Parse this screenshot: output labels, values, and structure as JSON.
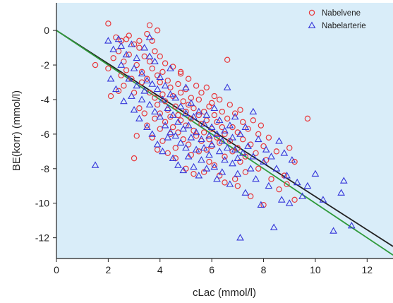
{
  "chart_data": {
    "type": "scatter",
    "xlabel": "cLac (mmol/l)",
    "ylabel": "BE(korr) (mmol/l)",
    "xlim": [
      0,
      13
    ],
    "ylim": [
      -13.2,
      1.6
    ],
    "x_ticks": [
      0,
      2,
      4,
      6,
      8,
      10,
      12
    ],
    "y_ticks": [
      0,
      -2,
      -4,
      -6,
      -8,
      -10,
      -12
    ],
    "grid": false,
    "plot_background": "#d9edf9",
    "legend_position": "top-right",
    "series": [
      {
        "name": "Nabelvene",
        "marker": "circle",
        "color": "#e8373b",
        "points": [
          [
            1.5,
            -2.0
          ],
          [
            2.0,
            0.4
          ],
          [
            2.0,
            -2.2
          ],
          [
            2.1,
            -3.8
          ],
          [
            2.2,
            -1.6
          ],
          [
            2.3,
            -0.4
          ],
          [
            2.4,
            -1.2
          ],
          [
            2.5,
            -2.6
          ],
          [
            2.5,
            -0.6
          ],
          [
            2.6,
            -1.8
          ],
          [
            2.6,
            -3.2
          ],
          [
            2.7,
            -0.5
          ],
          [
            2.7,
            -2.3
          ],
          [
            2.8,
            -1.4
          ],
          [
            2.8,
            -0.3
          ],
          [
            2.9,
            -2.8
          ],
          [
            3.0,
            -0.8
          ],
          [
            3.0,
            -3.6
          ],
          [
            3.0,
            -7.4
          ],
          [
            3.1,
            -2.0
          ],
          [
            3.1,
            -6.1
          ],
          [
            3.2,
            -1.0
          ],
          [
            3.2,
            -4.5
          ],
          [
            3.3,
            -2.4
          ],
          [
            3.3,
            -3.0
          ],
          [
            3.4,
            -1.5
          ],
          [
            3.4,
            -4.8
          ],
          [
            3.5,
            -0.2
          ],
          [
            3.5,
            -2.8
          ],
          [
            3.5,
            -5.5
          ],
          [
            3.6,
            0.3
          ],
          [
            3.6,
            -1.8
          ],
          [
            3.6,
            -3.6
          ],
          [
            3.7,
            -0.6
          ],
          [
            3.7,
            -2.2
          ],
          [
            3.7,
            -6.2
          ],
          [
            3.8,
            -1.2
          ],
          [
            3.8,
            -3.9
          ],
          [
            3.8,
            -5.1
          ],
          [
            3.9,
            -2.6
          ],
          [
            3.9,
            -4.3
          ],
          [
            3.9,
            -6.9
          ],
          [
            4.0,
            -1.5
          ],
          [
            4.0,
            -3.0
          ],
          [
            4.0,
            -4.8
          ],
          [
            4.0,
            -5.7
          ],
          [
            4.1,
            -2.4
          ],
          [
            4.1,
            -3.7
          ],
          [
            4.1,
            -6.4
          ],
          [
            4.2,
            -1.9
          ],
          [
            4.2,
            -4.1
          ],
          [
            4.2,
            -5.3
          ],
          [
            4.3,
            -2.9
          ],
          [
            4.3,
            -4.6
          ],
          [
            4.3,
            -7.1
          ],
          [
            4.4,
            -3.3
          ],
          [
            4.4,
            -5.0
          ],
          [
            4.4,
            -6.0
          ],
          [
            4.5,
            -2.1
          ],
          [
            4.5,
            -3.8
          ],
          [
            4.5,
            -5.6
          ],
          [
            4.6,
            -4.4
          ],
          [
            4.6,
            -6.8
          ],
          [
            4.6,
            -7.4
          ],
          [
            4.7,
            -3.1
          ],
          [
            4.7,
            -4.9
          ],
          [
            4.7,
            -5.9
          ],
          [
            4.8,
            -2.5
          ],
          [
            4.8,
            -3.6
          ],
          [
            4.8,
            -5.2
          ],
          [
            4.9,
            -4.1
          ],
          [
            4.9,
            -6.3
          ],
          [
            5.0,
            -3.4
          ],
          [
            5.0,
            -4.7
          ],
          [
            5.0,
            -5.5
          ],
          [
            5.0,
            -8.0
          ],
          [
            5.1,
            -2.8
          ],
          [
            5.1,
            -4.3
          ],
          [
            5.1,
            -6.6
          ],
          [
            5.2,
            -3.9
          ],
          [
            5.2,
            -5.1
          ],
          [
            5.2,
            -7.2
          ],
          [
            5.3,
            -4.5
          ],
          [
            5.3,
            -5.8
          ],
          [
            5.3,
            -8.3
          ],
          [
            5.4,
            -3.2
          ],
          [
            5.4,
            -6.1
          ],
          [
            5.5,
            -4.0
          ],
          [
            5.5,
            -4.9
          ],
          [
            5.5,
            -7.0
          ],
          [
            5.6,
            -3.6
          ],
          [
            5.6,
            -5.4
          ],
          [
            5.6,
            -6.4
          ],
          [
            5.7,
            -4.7
          ],
          [
            5.7,
            -5.9
          ],
          [
            5.7,
            -8.2
          ],
          [
            5.8,
            -3.3
          ],
          [
            5.8,
            -5.2
          ],
          [
            5.8,
            -6.9
          ],
          [
            5.9,
            -4.4
          ],
          [
            5.9,
            -6.3
          ],
          [
            5.9,
            -7.6
          ],
          [
            6.0,
            -4.2
          ],
          [
            6.0,
            -5.7
          ],
          [
            6.0,
            -6.7
          ],
          [
            6.1,
            -3.8
          ],
          [
            6.1,
            -4.9
          ],
          [
            6.1,
            -7.8
          ],
          [
            6.2,
            -5.3
          ],
          [
            6.2,
            -6.2
          ],
          [
            6.3,
            -4.0
          ],
          [
            6.3,
            -6.5
          ],
          [
            6.3,
            -8.4
          ],
          [
            6.4,
            -4.7
          ],
          [
            6.4,
            -5.6
          ],
          [
            6.5,
            -6.0
          ],
          [
            6.5,
            -7.3
          ],
          [
            6.5,
            -8.8
          ],
          [
            6.6,
            -1.7
          ],
          [
            6.6,
            -5.1
          ],
          [
            6.7,
            -4.3
          ],
          [
            6.7,
            -6.4
          ],
          [
            6.8,
            -5.6
          ],
          [
            6.8,
            -7.0
          ],
          [
            6.9,
            -4.8
          ],
          [
            6.9,
            -8.6
          ],
          [
            7.0,
            -5.9
          ],
          [
            7.0,
            -6.8
          ],
          [
            7.0,
            -9.0
          ],
          [
            7.1,
            -4.6
          ],
          [
            7.1,
            -7.6
          ],
          [
            7.2,
            -5.3
          ],
          [
            7.2,
            -6.3
          ],
          [
            7.3,
            -7.3
          ],
          [
            7.3,
            -8.2
          ],
          [
            7.4,
            -5.7
          ],
          [
            7.5,
            -6.6
          ],
          [
            7.5,
            -9.6
          ],
          [
            7.6,
            -5.2
          ],
          [
            7.7,
            -7.1
          ],
          [
            7.8,
            -6.0
          ],
          [
            7.8,
            -8.0
          ],
          [
            7.9,
            -5.5
          ],
          [
            8.0,
            -6.7
          ],
          [
            8.0,
            -10.1
          ],
          [
            8.1,
            -7.5
          ],
          [
            8.2,
            -6.2
          ],
          [
            8.3,
            -8.6
          ],
          [
            8.5,
            -7.0
          ],
          [
            8.6,
            -9.2
          ],
          [
            8.8,
            -8.4
          ],
          [
            8.9,
            -8.9
          ],
          [
            9.0,
            -6.8
          ],
          [
            9.2,
            -7.6
          ],
          [
            9.2,
            -9.8
          ],
          [
            9.7,
            -5.1
          ],
          [
            2.4,
            -3.5
          ],
          [
            3.2,
            -0.6
          ],
          [
            3.9,
            0.0
          ],
          [
            4.8,
            -2.4
          ]
        ]
      },
      {
        "name": "Nabelarterie",
        "marker": "triangle",
        "color": "#3535d9",
        "points": [
          [
            1.5,
            -7.8
          ],
          [
            2.0,
            -0.6
          ],
          [
            2.1,
            -2.8
          ],
          [
            2.2,
            -1.1
          ],
          [
            2.3,
            -3.4
          ],
          [
            2.4,
            -0.5
          ],
          [
            2.5,
            -2.0
          ],
          [
            2.6,
            -4.1
          ],
          [
            2.7,
            -1.4
          ],
          [
            2.8,
            -2.8
          ],
          [
            2.9,
            -0.8
          ],
          [
            2.9,
            -3.8
          ],
          [
            3.0,
            -2.2
          ],
          [
            3.0,
            -4.6
          ],
          [
            3.1,
            -1.6
          ],
          [
            3.1,
            -3.2
          ],
          [
            3.2,
            -5.1
          ],
          [
            3.3,
            -2.5
          ],
          [
            3.3,
            -4.0
          ],
          [
            3.4,
            -1.0
          ],
          [
            3.4,
            -3.5
          ],
          [
            3.5,
            -5.6
          ],
          [
            3.5,
            -2.9
          ],
          [
            3.6,
            -4.3
          ],
          [
            3.6,
            -0.4
          ],
          [
            3.7,
            -3.1
          ],
          [
            3.7,
            -6.0
          ],
          [
            3.8,
            -1.8
          ],
          [
            3.8,
            -4.7
          ],
          [
            3.9,
            -3.4
          ],
          [
            3.9,
            -6.6
          ],
          [
            4.0,
            -2.7
          ],
          [
            4.0,
            -5.0
          ],
          [
            4.1,
            -4.0
          ],
          [
            4.1,
            -7.0
          ],
          [
            4.2,
            -3.2
          ],
          [
            4.2,
            -5.5
          ],
          [
            4.3,
            -4.5
          ],
          [
            4.3,
            -6.2
          ],
          [
            4.4,
            -3.7
          ],
          [
            4.4,
            -5.9
          ],
          [
            4.5,
            -4.9
          ],
          [
            4.5,
            -7.4
          ],
          [
            4.6,
            -3.9
          ],
          [
            4.6,
            -6.1
          ],
          [
            4.7,
            -5.3
          ],
          [
            4.7,
            -7.8
          ],
          [
            4.8,
            -4.4
          ],
          [
            4.8,
            -6.5
          ],
          [
            4.9,
            -5.7
          ],
          [
            4.9,
            -8.1
          ],
          [
            5.0,
            -4.8
          ],
          [
            5.0,
            -6.8
          ],
          [
            5.1,
            -5.5
          ],
          [
            5.1,
            -7.3
          ],
          [
            5.2,
            -4.2
          ],
          [
            5.2,
            -6.2
          ],
          [
            5.3,
            -5.0
          ],
          [
            5.3,
            -7.9
          ],
          [
            5.4,
            -5.9
          ],
          [
            5.4,
            -6.9
          ],
          [
            5.5,
            -4.7
          ],
          [
            5.5,
            -8.4
          ],
          [
            5.6,
            -6.3
          ],
          [
            5.6,
            -7.5
          ],
          [
            5.7,
            -5.4
          ],
          [
            5.7,
            -6.8
          ],
          [
            5.8,
            -4.9
          ],
          [
            5.8,
            -8.0
          ],
          [
            5.9,
            -6.1
          ],
          [
            5.9,
            -7.2
          ],
          [
            6.0,
            -5.6
          ],
          [
            6.0,
            -6.6
          ],
          [
            6.1,
            -4.5
          ],
          [
            6.1,
            -7.9
          ],
          [
            6.2,
            -6.0
          ],
          [
            6.2,
            -8.6
          ],
          [
            6.3,
            -5.2
          ],
          [
            6.3,
            -7.0
          ],
          [
            6.4,
            -6.4
          ],
          [
            6.4,
            -8.2
          ],
          [
            6.5,
            -5.8
          ],
          [
            6.5,
            -7.5
          ],
          [
            6.6,
            -3.3
          ],
          [
            6.6,
            -6.8
          ],
          [
            6.7,
            -5.5
          ],
          [
            6.7,
            -8.9
          ],
          [
            6.8,
            -6.2
          ],
          [
            6.8,
            -7.7
          ],
          [
            6.9,
            -5.0
          ],
          [
            6.9,
            -6.9
          ],
          [
            7.0,
            -7.4
          ],
          [
            7.0,
            -8.3
          ],
          [
            7.1,
            -6.0
          ],
          [
            7.1,
            -12.0
          ],
          [
            7.2,
            -7.1
          ],
          [
            7.3,
            -5.6
          ],
          [
            7.3,
            -9.4
          ],
          [
            7.4,
            -6.7
          ],
          [
            7.5,
            -8.0
          ],
          [
            7.6,
            -4.7
          ],
          [
            7.6,
            -7.3
          ],
          [
            7.7,
            -8.6
          ],
          [
            7.8,
            -6.3
          ],
          [
            7.9,
            -10.1
          ],
          [
            8.0,
            -7.6
          ],
          [
            8.1,
            -6.9
          ],
          [
            8.2,
            -9.0
          ],
          [
            8.3,
            -7.3
          ],
          [
            8.4,
            -11.4
          ],
          [
            8.5,
            -8.0
          ],
          [
            8.6,
            -6.4
          ],
          [
            8.7,
            -9.8
          ],
          [
            8.8,
            -7.1
          ],
          [
            8.9,
            -8.4
          ],
          [
            9.0,
            -10.0
          ],
          [
            9.1,
            -7.5
          ],
          [
            9.3,
            -8.8
          ],
          [
            9.5,
            -9.6
          ],
          [
            9.7,
            -9.0
          ],
          [
            10.0,
            -8.3
          ],
          [
            10.3,
            -9.8
          ],
          [
            10.7,
            -11.6
          ],
          [
            11.0,
            -9.4
          ],
          [
            11.1,
            -8.7
          ],
          [
            11.4,
            -11.3
          ],
          [
            3.6,
            -1.5
          ],
          [
            4.4,
            -2.2
          ],
          [
            5.0,
            -3.3
          ],
          [
            2.5,
            -0.9
          ]
        ]
      }
    ],
    "lines": [
      {
        "color": "#222222",
        "x": [
          0,
          13
        ],
        "y": [
          0,
          -12.5
        ]
      },
      {
        "color": "#2f9a3b",
        "x": [
          0,
          13
        ],
        "y": [
          0,
          -13.0
        ]
      }
    ]
  }
}
